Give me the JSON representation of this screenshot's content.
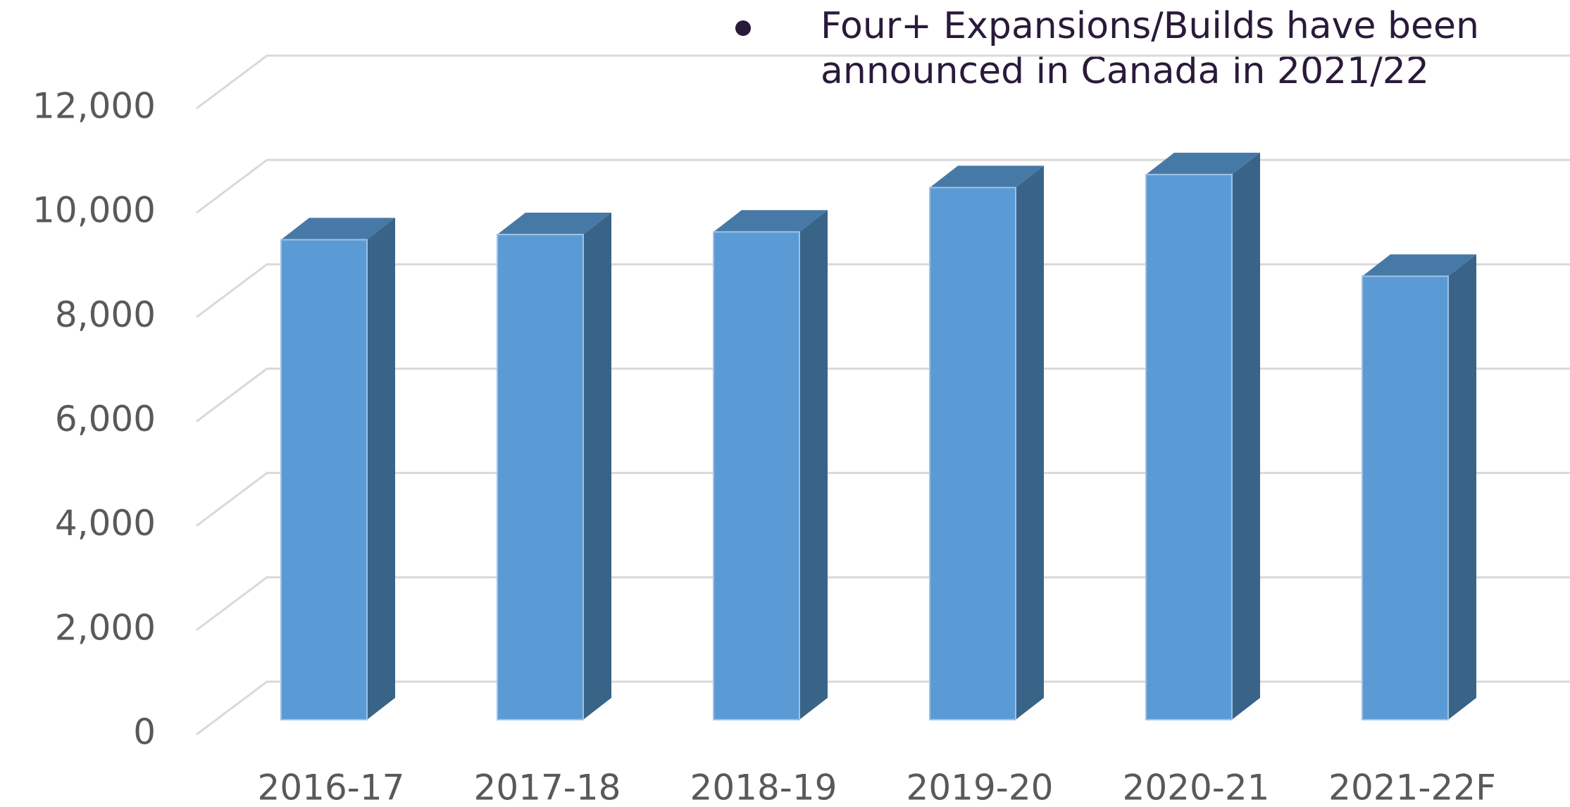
{
  "chart_data": {
    "type": "bar3d",
    "annotation": [
      "Four+ Expansions/Builds have been",
      "announced in Canada in 2021/22"
    ],
    "categories": [
      "2016-17",
      "2017-18",
      "2018-19",
      "2019-20",
      "2020-21",
      "2021-22F"
    ],
    "values": [
      9200,
      9300,
      9350,
      10200,
      10450,
      8500
    ],
    "color": "#5b9bd5",
    "ylim": [
      0,
      12000
    ],
    "yticks": [
      {
        "value": 0,
        "label": "0"
      },
      {
        "value": 2000,
        "label": "2,000"
      },
      {
        "value": 4000,
        "label": "4,000"
      },
      {
        "value": 6000,
        "label": "6,000"
      },
      {
        "value": 8000,
        "label": "8,000"
      },
      {
        "value": 10000,
        "label": "10,000"
      },
      {
        "value": 12000,
        "label": "12,000"
      }
    ],
    "grid": true
  }
}
